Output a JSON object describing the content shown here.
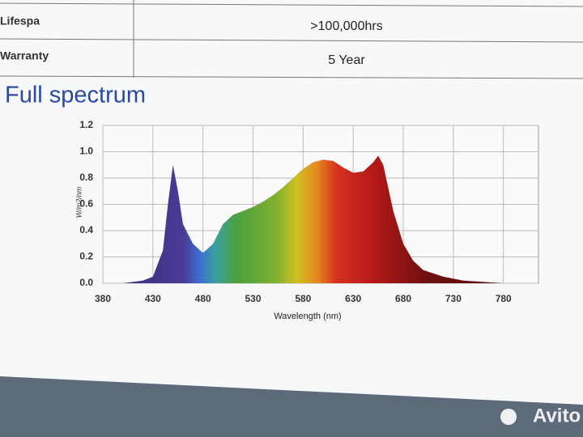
{
  "header": {
    "rows": [
      [
        "Lifespa",
        ">100,000hrs"
      ],
      [
        "Warranty",
        "5 Year"
      ]
    ]
  },
  "watermark": "Avito",
  "chart_data": {
    "type": "area",
    "title": "Full spectrum",
    "x_label": "Wavelength (nm)",
    "y_label": "W/m2/nm",
    "x": [
      380,
      400,
      420,
      430,
      440,
      445,
      450,
      455,
      460,
      470,
      480,
      490,
      500,
      510,
      520,
      530,
      540,
      550,
      560,
      570,
      580,
      590,
      600,
      610,
      620,
      630,
      640,
      650,
      655,
      660,
      670,
      680,
      690,
      700,
      720,
      740,
      760,
      780
    ],
    "values": [
      0,
      0,
      0.02,
      0.05,
      0.25,
      0.6,
      0.9,
      0.7,
      0.45,
      0.3,
      0.23,
      0.3,
      0.45,
      0.52,
      0.55,
      0.58,
      0.62,
      0.67,
      0.73,
      0.8,
      0.87,
      0.92,
      0.94,
      0.93,
      0.88,
      0.84,
      0.85,
      0.92,
      0.97,
      0.9,
      0.55,
      0.3,
      0.17,
      0.1,
      0.05,
      0.02,
      0.01,
      0
    ],
    "xlim": [
      380,
      815
    ],
    "ylim": [
      0,
      1.2
    ],
    "xticks": [
      380,
      430,
      480,
      530,
      580,
      630,
      680,
      730,
      780
    ],
    "yticks": [
      {
        "value": 0,
        "label": "0.0"
      },
      0.2,
      0.4,
      0.6,
      0.8,
      {
        "value": 1,
        "label": "1.0"
      },
      1.2
    ],
    "grid": true
  }
}
